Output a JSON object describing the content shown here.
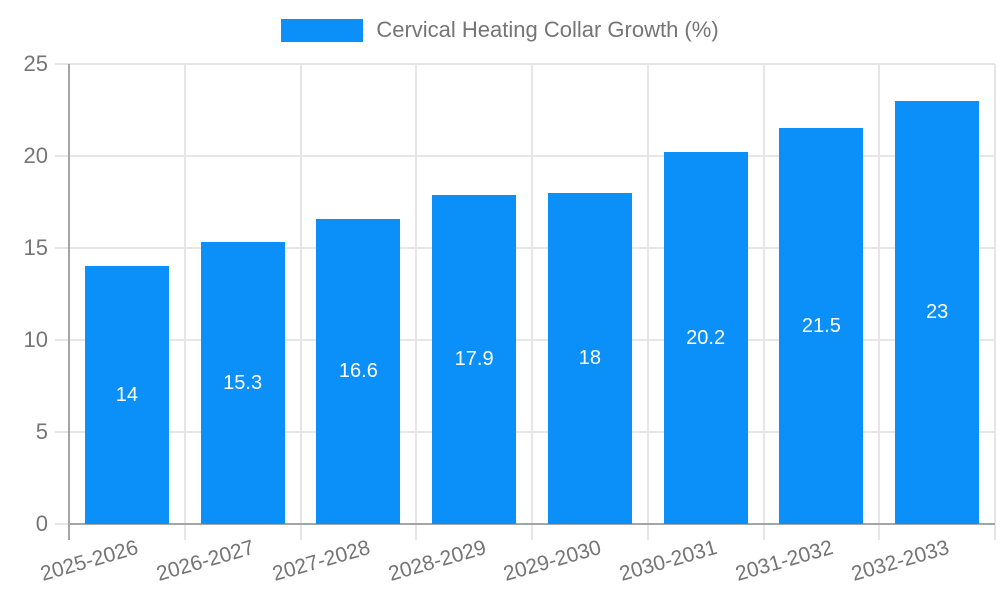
{
  "legend": {
    "label": "Cervical Heating Collar Growth (%)"
  },
  "chart_data": {
    "type": "bar",
    "title": "Cervical Heating Collar Growth (%)",
    "categories": [
      "2025-2026",
      "2026-2027",
      "2027-2028",
      "2028-2029",
      "2029-2030",
      "2030-2031",
      "2031-2032",
      "2032-2033"
    ],
    "values": [
      14,
      15.3,
      16.6,
      17.9,
      18,
      20.2,
      21.5,
      23
    ],
    "value_labels": [
      "14",
      "15.3",
      "16.6",
      "17.9",
      "18",
      "20.2",
      "21.5",
      "23"
    ],
    "xlabel": "",
    "ylabel": "",
    "ylim": [
      0,
      25
    ],
    "yticks": [
      0,
      5,
      10,
      15,
      20,
      25
    ],
    "grid": true,
    "legend_position": "top-center",
    "value_label_position": "inside-center",
    "colors": {
      "bar": "#0b90fa",
      "bar_label": "#ffffff",
      "grid": "#e6e6e6",
      "axis": "#a5a5a5",
      "text": "#757575"
    }
  }
}
